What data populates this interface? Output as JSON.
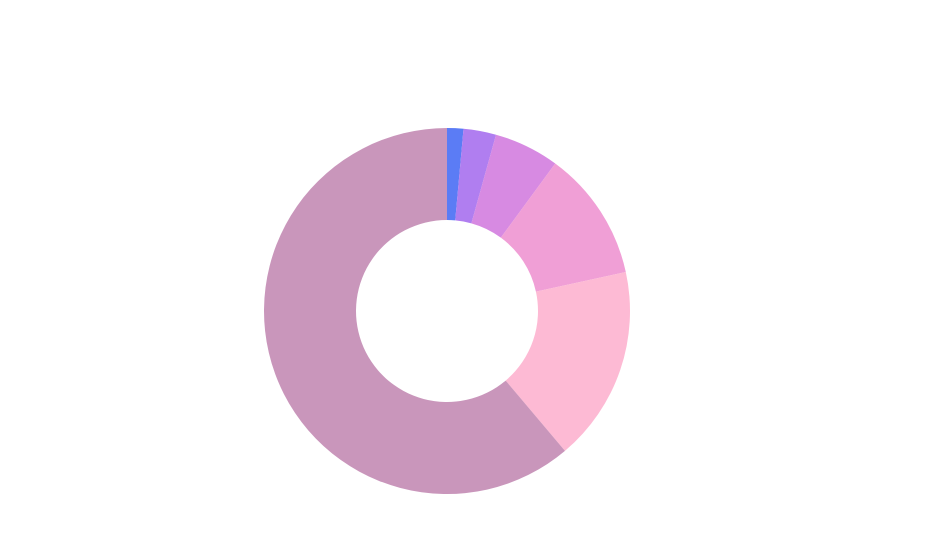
{
  "chart_data": {
    "type": "pie",
    "style": "donut",
    "title": "",
    "legend": "none",
    "slices": [
      {
        "value": 1,
        "color": "#5b7cf5"
      },
      {
        "value": 2,
        "color": "#b07ef0"
      },
      {
        "value": 4,
        "color": "#d78ae2"
      },
      {
        "value": 8,
        "color": "#f09fd6"
      },
      {
        "value": 12,
        "color": "#fdbad4"
      },
      {
        "value": 42.5,
        "color": "#c996bb"
      }
    ]
  }
}
